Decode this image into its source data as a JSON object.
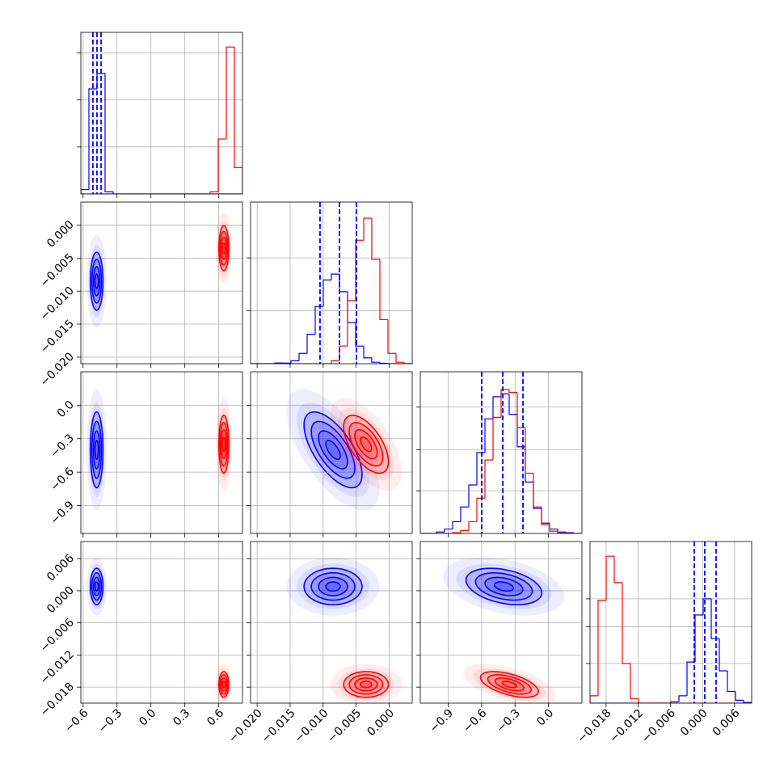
{
  "chart_data": {
    "type": "corner",
    "grid": true,
    "params": [
      {
        "lim": [
          -0.62,
          0.81
        ],
        "ticks": [
          {
            "value": -0.6,
            "label": "−0.6"
          },
          {
            "value": -0.3,
            "label": "−0.3"
          },
          {
            "value": 0,
            "label": "0.0"
          },
          0.3,
          0.6
        ]
      },
      {
        "lim": [
          -0.021,
          0.0035
        ],
        "ticks": [
          {
            "value": -0.02,
            "label": "−0.020"
          },
          {
            "value": -0.015,
            "label": "−0.015"
          },
          {
            "value": -0.01,
            "label": "−0.010"
          },
          {
            "value": -0.005,
            "label": "−0.005"
          },
          {
            "value": 0,
            "label": "0.000"
          }
        ]
      },
      {
        "lim": [
          -1.15,
          0.3
        ],
        "ticks": [
          {
            "value": -0.9,
            "label": "−0.9"
          },
          {
            "value": -0.6,
            "label": "−0.6"
          },
          {
            "value": -0.3,
            "label": "−0.3"
          },
          {
            "value": 0,
            "label": "0.0"
          }
        ]
      },
      {
        "lim": [
          -0.021,
          0.0092
        ],
        "ticks": [
          {
            "value": -0.018,
            "label": "−0.018"
          },
          {
            "value": -0.012,
            "label": "−0.012"
          },
          {
            "value": -0.006,
            "label": "−0.006"
          },
          {
            "value": 0,
            "label": "0.000"
          },
          0.006
        ]
      }
    ],
    "hist_ylim": [
      0,
      1.1
    ],
    "hist_yticks": [
      [
        0.32,
        0.64,
        0.96
      ],
      [
        0.36,
        0.72
      ],
      [
        0.29,
        0.57,
        0.86
      ],
      [
        0.27,
        0.52,
        0.71
      ]
    ],
    "bins": [
      [
        -0.62,
        -0.5485,
        -0.477,
        -0.4055,
        -0.334,
        -0.2625,
        -0.191,
        -0.1195,
        -0.048,
        0.0235,
        0.095,
        0.1665,
        0.238,
        0.3095,
        0.381,
        0.4525,
        0.524,
        0.5955,
        0.667,
        0.7385,
        0.81
      ],
      [
        -0.021,
        -0.019775,
        -0.01855,
        -0.017325,
        -0.0161,
        -0.014875,
        -0.01365,
        -0.012425,
        -0.0112,
        -0.009975,
        -0.00875,
        -0.007525,
        -0.0063,
        -0.005075,
        -0.00385,
        -0.002625,
        -0.0014,
        -0.000175,
        0.00105,
        0.002275,
        0.0035
      ],
      [
        -1.15,
        -1.0775,
        -1.005,
        -0.9325,
        -0.86,
        -0.7875,
        -0.715,
        -0.6425,
        -0.57,
        -0.4975,
        -0.425,
        -0.3525,
        -0.28,
        -0.2075,
        -0.135,
        -0.0625,
        0.01,
        0.0825,
        0.155,
        0.2275,
        0.3
      ],
      [
        -0.021,
        -0.01949,
        -0.01798,
        -0.01647,
        -0.01496,
        -0.01345,
        -0.01194,
        -0.01043,
        -0.00892,
        -0.00741,
        -0.0059,
        -0.00439,
        -0.00288,
        -0.00137,
        0.00014,
        0.00165,
        0.00316,
        0.00467,
        0.00618,
        0.00769,
        0.0092
      ]
    ],
    "quantiles": [
      [
        -0.513,
        -0.477,
        -0.441
      ],
      [
        -0.01047,
        -0.00752,
        -0.00495
      ],
      [
        -0.599,
        -0.41,
        -0.229
      ],
      [
        -0.00152,
        0.00044,
        0.00255
      ]
    ],
    "quantile_color": "#0000ff",
    "contour_levels": [
      0.5,
      1,
      1.5,
      2
    ],
    "series": [
      {
        "color": "#0000ff",
        "hists": [
          [
            0.03,
            0.715,
            0.82,
            0.015,
            0,
            0,
            0,
            0,
            0,
            0,
            0,
            0,
            0,
            0,
            0,
            0,
            0,
            0,
            0,
            0
          ],
          [
            0,
            0,
            0,
            0.005,
            0.004,
            0.02,
            0.07,
            0.2,
            0.39,
            0.57,
            0.61,
            0.49,
            0.28,
            0.12,
            0.04,
            0.01,
            0.003,
            0,
            0,
            0
          ],
          [
            0,
            0,
            0.01,
            0.03,
            0.08,
            0.18,
            0.33,
            0.55,
            0.78,
            0.93,
            0.95,
            0.81,
            0.59,
            0.35,
            0.17,
            0.07,
            0.03,
            0.01,
            0.005,
            0
          ],
          [
            0,
            0,
            0,
            0,
            0,
            0,
            0,
            0,
            0,
            0,
            0.01,
            0.05,
            0.28,
            0.6,
            0.71,
            0.44,
            0.22,
            0.08,
            0.02,
            0.005
          ]
        ],
        "mean": [
          -0.48,
          -0.0085,
          -0.4,
          0.0008
        ],
        "sigma": [
          0.028,
          0.0022,
          0.17,
          0.0017
        ],
        "corr": [
          [
            1,
            0,
            0,
            0
          ],
          [
            0,
            1,
            -0.65,
            0
          ],
          [
            0,
            -0.65,
            1,
            -0.35
          ],
          [
            0,
            0,
            -0.35,
            1
          ]
        ]
      },
      {
        "color": "#ff0000",
        "hists": [
          [
            0,
            0,
            0,
            0,
            0,
            0,
            0,
            0,
            0,
            0,
            0,
            0,
            0,
            0,
            0,
            0,
            0.015,
            0.374,
            1.0,
            0.18
          ],
          [
            0,
            0,
            0,
            0,
            0,
            0,
            0,
            0,
            0,
            0,
            0.02,
            0.12,
            0.43,
            0.84,
            0.99,
            0.71,
            0.3,
            0.07,
            0.01,
            0
          ],
          [
            0,
            0,
            0,
            0,
            0.005,
            0.02,
            0.08,
            0.24,
            0.5,
            0.79,
            0.98,
            0.96,
            0.72,
            0.41,
            0.18,
            0.06,
            0.015,
            0.003,
            0,
            0
          ],
          [
            0.05,
            0.7,
            1.0,
            0.82,
            0.27,
            0.03,
            0,
            0,
            0,
            0,
            0,
            0,
            0,
            0,
            0,
            0,
            0,
            0,
            0,
            0
          ]
        ],
        "mean": [
          0.645,
          -0.0035,
          -0.35,
          -0.0175
        ],
        "sigma": [
          0.022,
          0.0017,
          0.13,
          0.0012
        ],
        "corr": [
          [
            1,
            0,
            0,
            0
          ],
          [
            0,
            1,
            -0.6,
            0
          ],
          [
            0,
            -0.6,
            1,
            -0.55
          ],
          [
            0,
            0,
            -0.55,
            1
          ]
        ]
      }
    ]
  }
}
